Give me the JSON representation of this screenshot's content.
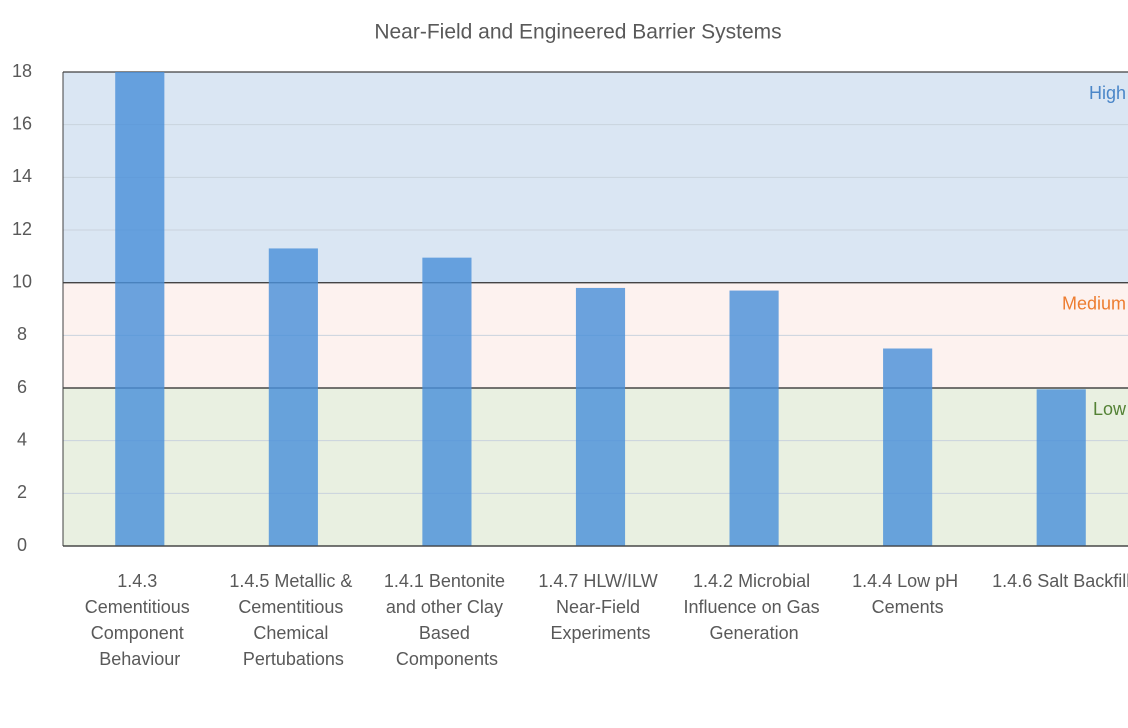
{
  "chart_data": {
    "type": "bar",
    "title": "Near-Field and Engineered Barrier Systems",
    "categories": [
      "1.4.3 Cementitious Component Behaviour",
      "1.4.5 Metallic & Cementitious Chemical Pertubations",
      "1.4.1 Bentonite and other Clay Based Components",
      "1.4.7 HLW/ILW Near-Field Experiments",
      "1.4.2 Microbial Influence on Gas Generation",
      "1.4.4 Low pH Cements",
      "1.4.6 Salt Backfill"
    ],
    "values": [
      18,
      11.3,
      10.95,
      9.8,
      9.7,
      7.5,
      5.95
    ],
    "color": "#4a90d9",
    "ylim": [
      0,
      18
    ],
    "yticks": [
      0,
      2,
      4,
      6,
      8,
      10,
      12,
      14,
      16,
      18
    ],
    "grid": true,
    "bands": [
      {
        "name": "High",
        "from": 10,
        "to": 18,
        "color": "#dae6f3",
        "label_color": "#4a86c8"
      },
      {
        "name": "Medium",
        "from": 6,
        "to": 10,
        "color": "#fdf2ef",
        "label_color": "#ed7d31"
      },
      {
        "name": "Low",
        "from": 0,
        "to": 6,
        "color": "#e9f0e1",
        "label_color": "#548235"
      }
    ]
  }
}
